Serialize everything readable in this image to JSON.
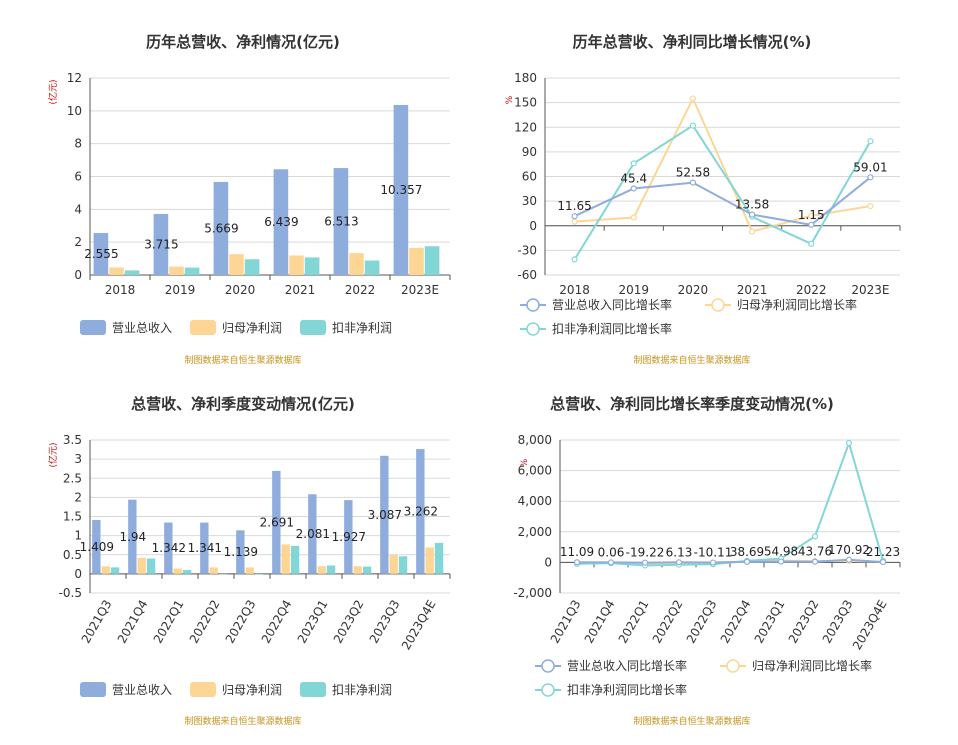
{
  "colors": {
    "revenue": "#8eacdc",
    "net_profit": "#fdd696",
    "deducted_profit": "#83d6d6",
    "revenue_line": "#8eacdc",
    "net_profit_line": "#fdd696",
    "deducted_line": "#83d6d6"
  },
  "source_note": "制图数据来自恒生聚源数据库",
  "chart_data": [
    {
      "type": "bar",
      "title": "历年总营收、净利情况(亿元)",
      "unit": "(亿元)",
      "categories": [
        "2018",
        "2019",
        "2020",
        "2021",
        "2022",
        "2023E"
      ],
      "ylim": [
        0,
        12
      ],
      "yticks": [
        "0",
        "2",
        "4",
        "6",
        "8",
        "10",
        "12"
      ],
      "series": [
        {
          "name": "营业总收入",
          "values": [
            2.555,
            3.715,
            5.669,
            6.439,
            6.513,
            10.357
          ]
        },
        {
          "name": "归母净利润",
          "values": [
            0.46,
            0.51,
            1.27,
            1.19,
            1.33,
            1.65
          ]
        },
        {
          "name": "扣非净利润",
          "values": [
            0.28,
            0.45,
            0.96,
            1.07,
            0.88,
            1.75
          ]
        }
      ],
      "labels": [
        "2.555",
        "3.715",
        "5.669",
        "6.439",
        "6.513",
        "10.357"
      ],
      "grid": true,
      "legend": "bottom"
    },
    {
      "type": "line",
      "title": "历年总营收、净利同比增长情况(%)",
      "unit": "%",
      "categories": [
        "2018",
        "2019",
        "2020",
        "2021",
        "2022",
        "2023E"
      ],
      "ylim": [
        -60,
        180
      ],
      "yticks": [
        "-60",
        "-30",
        "0",
        "30",
        "60",
        "90",
        "120",
        "150",
        "180"
      ],
      "series": [
        {
          "name": "营业总收入同比增长率",
          "values": [
            11.65,
            45.4,
            52.58,
            13.58,
            1.15,
            59.01
          ]
        },
        {
          "name": "归母净利润同比增长率",
          "values": [
            5,
            10,
            155,
            -7,
            12,
            24
          ]
        },
        {
          "name": "扣非净利润同比增长率",
          "values": [
            -41,
            76,
            122,
            11,
            -22,
            103
          ]
        }
      ],
      "labels": [
        "11.65",
        "45.4",
        "52.58",
        "13.58",
        "1.15",
        "59.01"
      ],
      "grid": true,
      "legend": "bottom"
    },
    {
      "type": "bar",
      "title": "总营收、净利季度变动情况(亿元)",
      "unit": "(亿元)",
      "categories": [
        "2021Q3",
        "2021Q4",
        "2022Q1",
        "2022Q2",
        "2022Q3",
        "2022Q4",
        "2023Q1",
        "2023Q2",
        "2023Q3",
        "2023Q4E"
      ],
      "ylim": [
        -0.5,
        3.5
      ],
      "yticks": [
        "-0.5",
        "0",
        "0.5",
        "1",
        "1.5",
        "2",
        "2.5",
        "3",
        "3.5"
      ],
      "series": [
        {
          "name": "营业总收入",
          "values": [
            1.409,
            1.94,
            1.342,
            1.341,
            1.139,
            2.691,
            2.081,
            1.927,
            3.087,
            3.262
          ]
        },
        {
          "name": "归母净利润",
          "values": [
            0.2,
            0.42,
            0.14,
            0.17,
            0.17,
            0.77,
            0.2,
            0.2,
            0.5,
            0.69
          ]
        },
        {
          "name": "扣非净利润",
          "values": [
            0.17,
            0.4,
            0.1,
            0.0,
            0.0,
            0.73,
            0.22,
            0.19,
            0.46,
            0.81
          ]
        }
      ],
      "labels": [
        "1.409",
        "1.94",
        "1.342",
        "1.341",
        "1.139",
        "2.691",
        "2.081",
        "1.927",
        "3.087",
        "3.262"
      ],
      "grid": true,
      "legend": "bottom"
    },
    {
      "type": "line",
      "title": "总营收、净利同比增长率季度变动情况(%)",
      "unit": "%",
      "categories": [
        "2021Q3",
        "2021Q4",
        "2022Q1",
        "2022Q2",
        "2022Q3",
        "2022Q4",
        "2023Q1",
        "2023Q2",
        "2023Q3",
        "2023Q4E"
      ],
      "ylim": [
        -2000,
        8000
      ],
      "yticks": [
        "-2,000",
        "0",
        "2,000",
        "4,000",
        "6,000",
        "8,000"
      ],
      "series": [
        {
          "name": "营业总收入同比增长率",
          "values": [
            11.09,
            0.06,
            -19.22,
            6.13,
            -10.11,
            38.69,
            54.98,
            43.76,
            170.92,
            21.23
          ]
        },
        {
          "name": "归母净利润同比增长率",
          "values": [
            -60,
            -30,
            -120,
            -90,
            -40,
            40,
            120,
            90,
            100,
            40
          ]
        },
        {
          "name": "扣非净利润同比增长率",
          "values": [
            -100,
            -50,
            -200,
            -150,
            -120,
            100,
            250,
            1700,
            7800,
            100
          ]
        }
      ],
      "labels": [
        "11.09",
        "0.06",
        "-19.22",
        "6.13",
        "-10.11",
        "38.69",
        "54.98",
        "43.76",
        "170.92",
        "21.23"
      ],
      "grid": true,
      "legend": "bottom"
    }
  ]
}
